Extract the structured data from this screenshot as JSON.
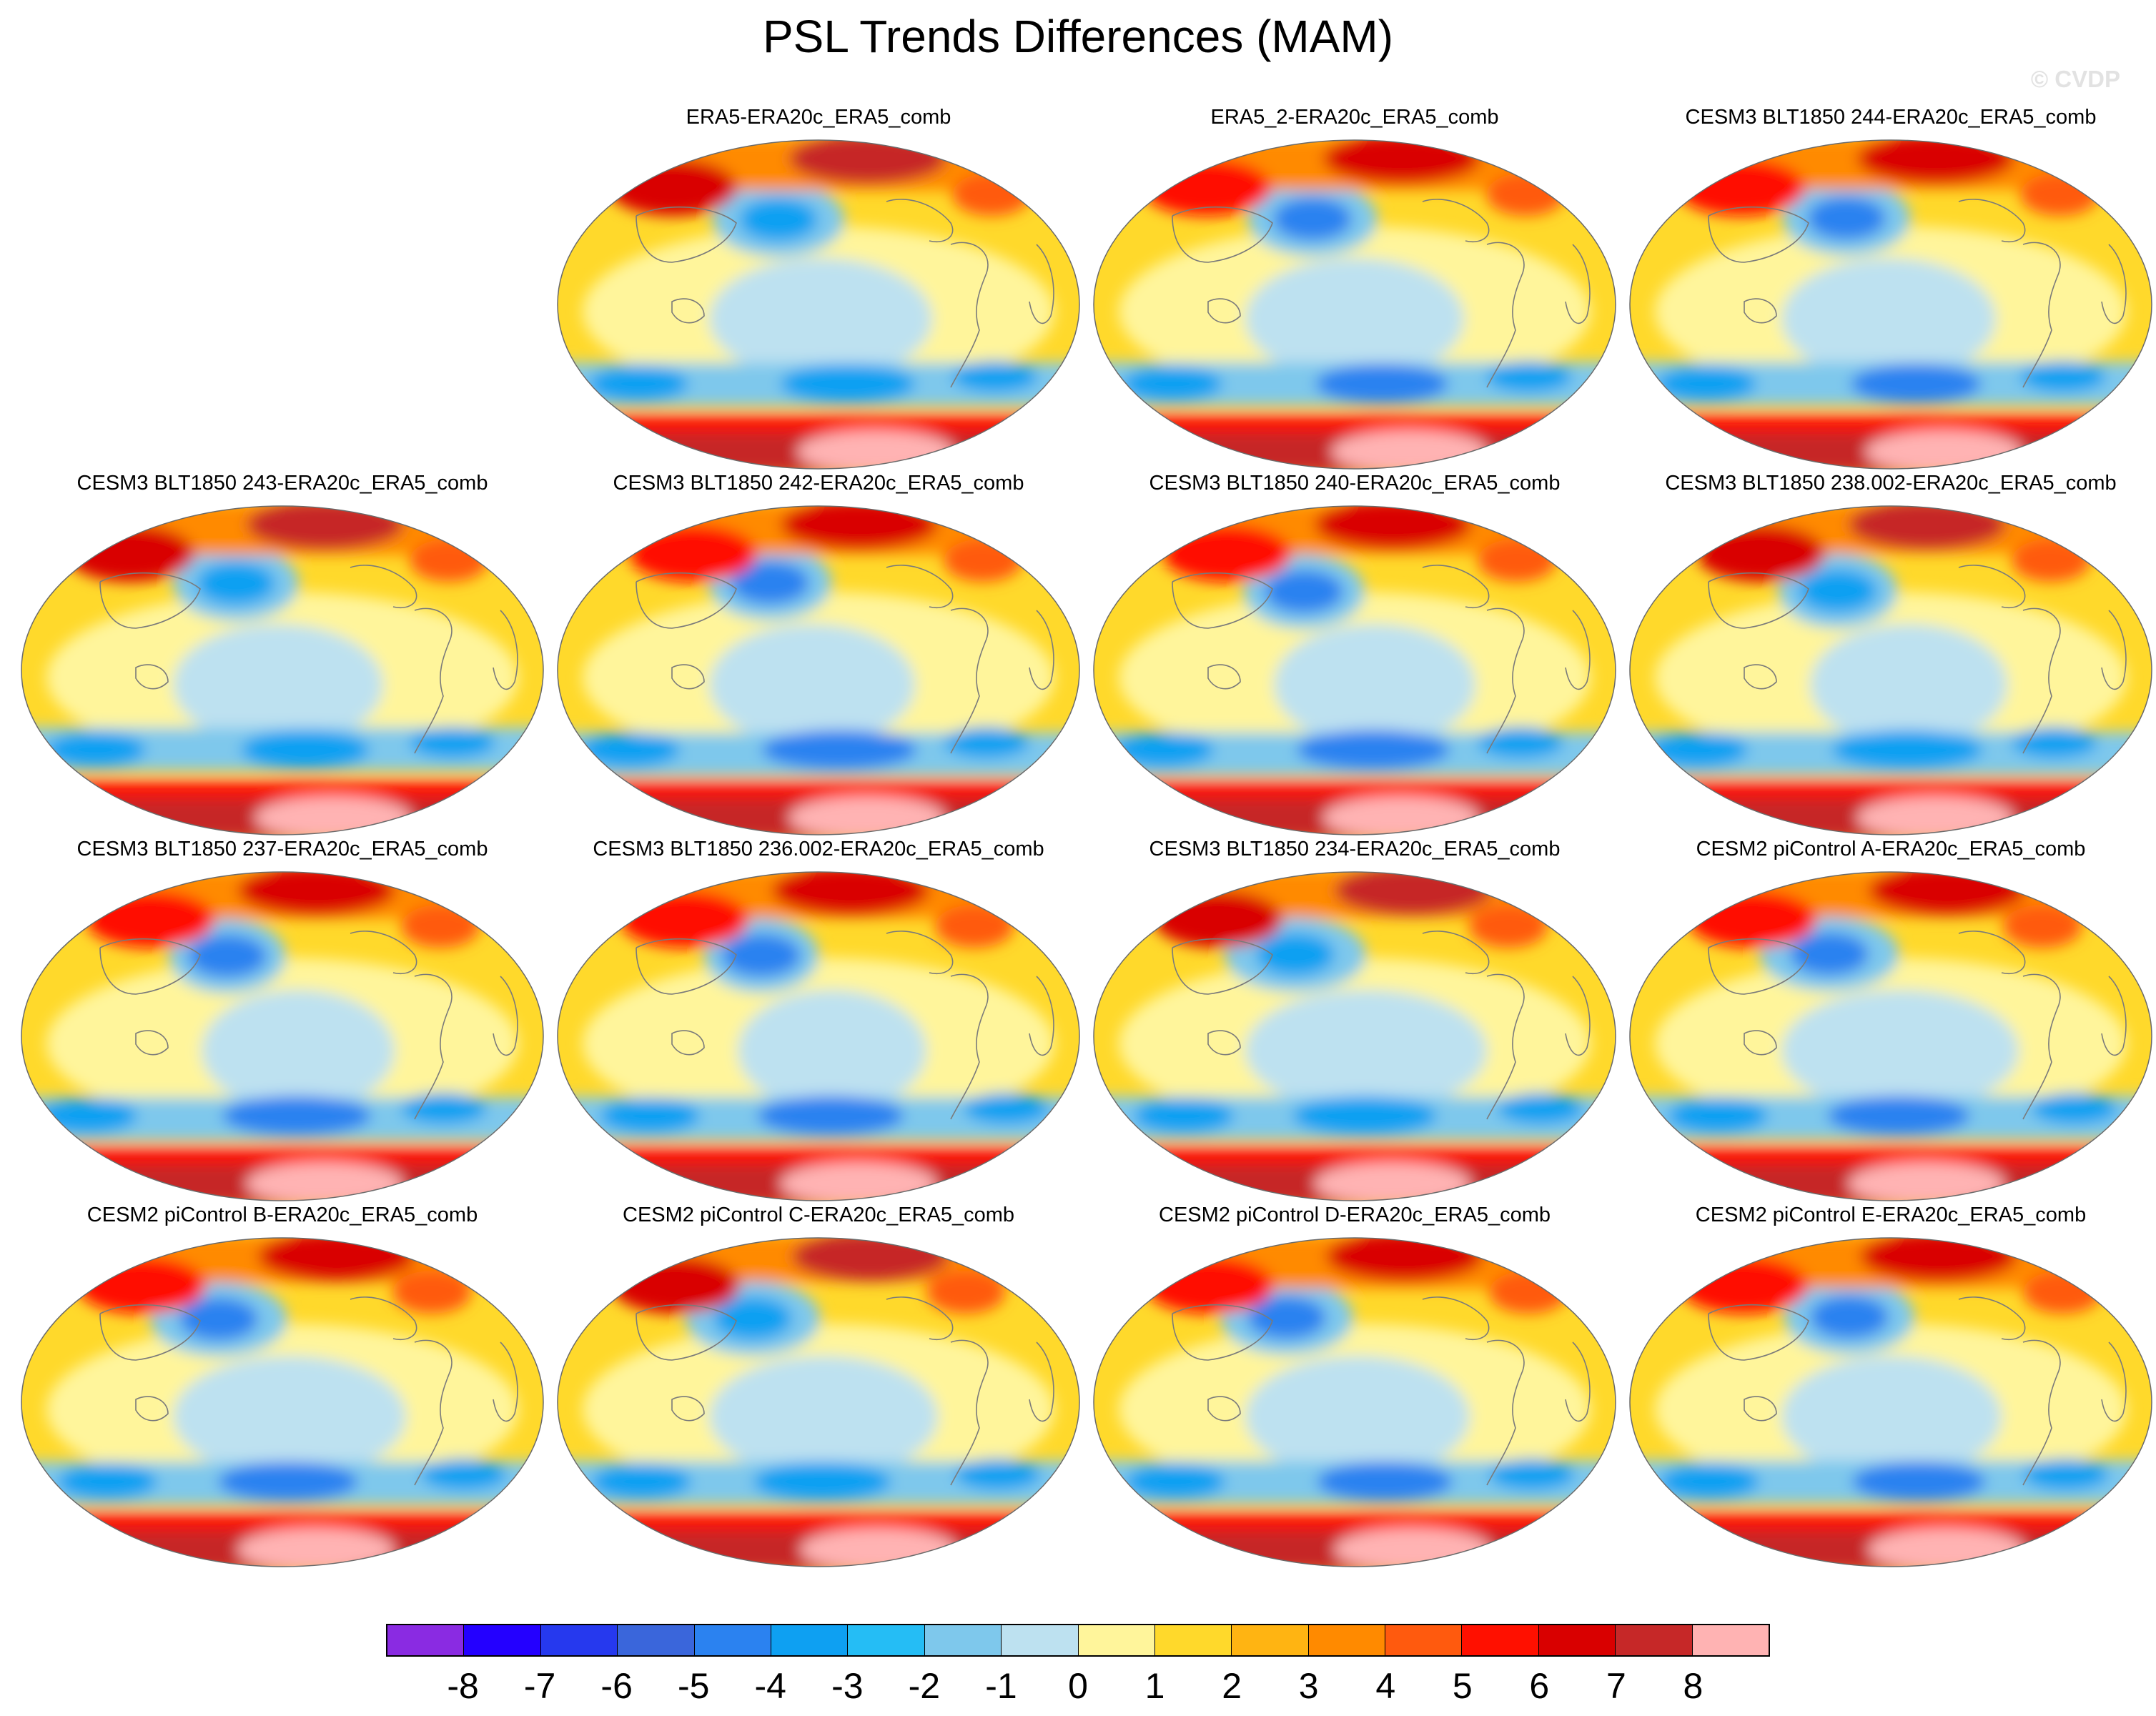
{
  "title": "PSL Trends Differences (MAM)",
  "watermark": "© CVDP",
  "panels": [
    {
      "title": "ERA5-ERA20c_ERA5_comb",
      "variant": 0
    },
    {
      "title": "ERA5_2-ERA20c_ERA5_comb",
      "variant": 1
    },
    {
      "title": "CESM3 BLT1850 244-ERA20c_ERA5_comb",
      "variant": 2
    },
    {
      "title": "CESM3 BLT1850 243-ERA20c_ERA5_comb",
      "variant": 3
    },
    {
      "title": "CESM3 BLT1850 242-ERA20c_ERA5_comb",
      "variant": 4
    },
    {
      "title": "CESM3 BLT1850 240-ERA20c_ERA5_comb",
      "variant": 5
    },
    {
      "title": "CESM3 BLT1850 238.002-ERA20c_ERA5_comb",
      "variant": 6
    },
    {
      "title": "CESM3 BLT1850 237-ERA20c_ERA5_comb",
      "variant": 7
    },
    {
      "title": "CESM3 BLT1850 236.002-ERA20c_ERA5_comb",
      "variant": 8
    },
    {
      "title": "CESM3 BLT1850 234-ERA20c_ERA5_comb",
      "variant": 9
    },
    {
      "title": "CESM2 piControl A-ERA20c_ERA5_comb",
      "variant": 10
    },
    {
      "title": "CESM2 piControl B-ERA20c_ERA5_comb",
      "variant": 11
    },
    {
      "title": "CESM2 piControl C-ERA20c_ERA5_comb",
      "variant": 12
    },
    {
      "title": "CESM2 piControl D-ERA20c_ERA5_comb",
      "variant": 13
    },
    {
      "title": "CESM2 piControl E-ERA20c_ERA5_comb",
      "variant": 14
    }
  ],
  "colorbar": {
    "colors": [
      "#8a2be2",
      "#2400ff",
      "#2639ee",
      "#3a66db",
      "#2b82f0",
      "#0ea0f2",
      "#25bdf5",
      "#7ec8ec",
      "#bde1f0",
      "#fff59b",
      "#ffd92b",
      "#ffb412",
      "#ff8a00",
      "#ff5a0e",
      "#ff1000",
      "#d90000",
      "#c62828",
      "#ffb3b3"
    ],
    "labels": [
      "-8",
      "-7",
      "-6",
      "-5",
      "-4",
      "-3",
      "-2",
      "-1",
      "0",
      "1",
      "2",
      "3",
      "4",
      "5",
      "6",
      "7",
      "8"
    ]
  }
}
